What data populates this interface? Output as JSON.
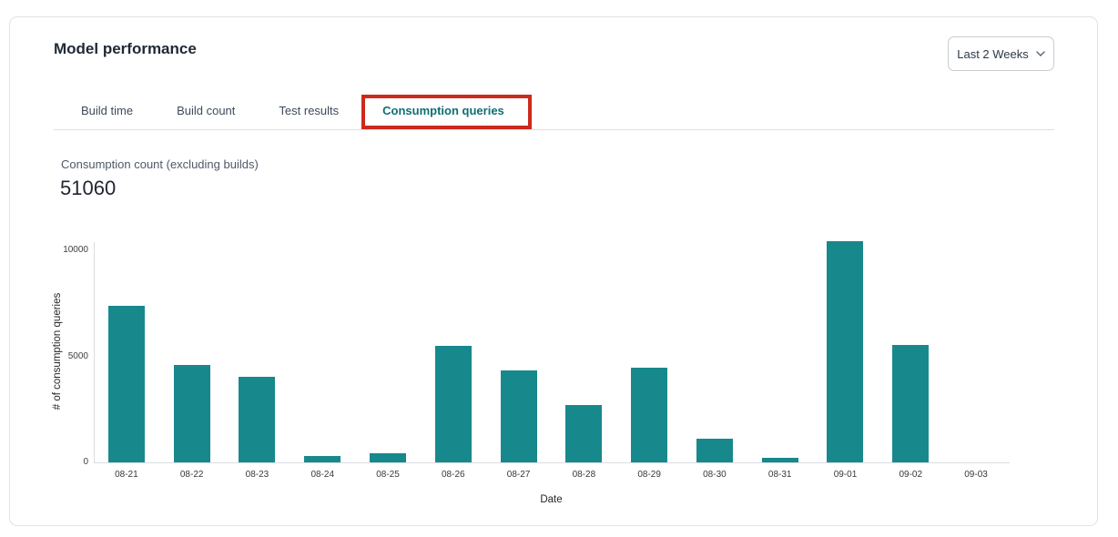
{
  "header": {
    "title": "Model performance",
    "date_range_selector": {
      "value": "Last 2 Weeks"
    }
  },
  "tabs": [
    {
      "label": "Build time",
      "active": false
    },
    {
      "label": "Build count",
      "active": false
    },
    {
      "label": "Test results",
      "active": false
    },
    {
      "label": "Consumption queries",
      "active": true,
      "annotated": true
    }
  ],
  "metric": {
    "label": "Consumption count (excluding builds)",
    "value": "51060"
  },
  "chart_data": {
    "type": "bar",
    "title": "",
    "categories": [
      "08-21",
      "08-22",
      "08-23",
      "08-24",
      "08-25",
      "08-26",
      "08-27",
      "08-28",
      "08-29",
      "08-30",
      "08-31",
      "09-01",
      "09-02",
      "09-03"
    ],
    "values": [
      7400,
      4600,
      4050,
      300,
      430,
      5480,
      4350,
      2700,
      4450,
      1100,
      200,
      10450,
      5550,
      0
    ],
    "xlabel": "Date",
    "ylabel": "# of consumption queries",
    "yticks": [
      0,
      5000,
      10000
    ],
    "ylim": [
      0,
      10700
    ],
    "grid": false,
    "legend": "none",
    "bar_color": "#17898d"
  },
  "colors": {
    "accent_teal": "#0e6e74",
    "bar_teal": "#17898d",
    "annotation_red": "#cb2a1c",
    "card_border": "#e1e2e5",
    "divider": "#dcdfe3",
    "axis_line": "#d9dce1"
  }
}
